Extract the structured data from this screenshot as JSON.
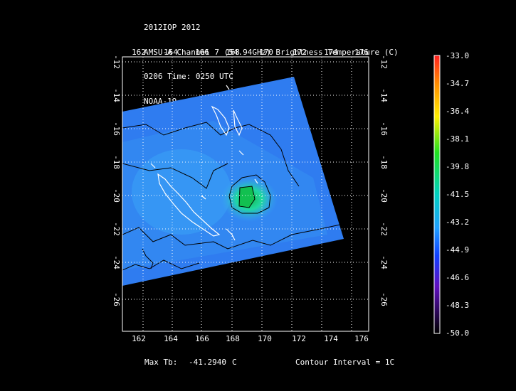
{
  "header": {
    "line1": "2012IOP 2012",
    "line2": "AMSU-A Channel 7 (54.94GHz) Brightness Temperature (C)",
    "line3": "0206 Time: 0250 UTC",
    "line4": "NOAA-19"
  },
  "axes": {
    "longitude_ticks": [
      "162",
      "164",
      "166",
      "168",
      "170",
      "172",
      "174",
      "176"
    ],
    "latitude_ticks": [
      "-12",
      "-14",
      "-16",
      "-18",
      "-20",
      "-22",
      "-24",
      "-26"
    ]
  },
  "colorbar": {
    "labels": [
      "-33.0",
      "-34.7",
      "-36.4",
      "-38.1",
      "-39.8",
      "-41.5",
      "-43.2",
      "-44.9",
      "-46.6",
      "-48.3",
      "-50.0"
    ]
  },
  "footer": {
    "max_label": "Max Tb:",
    "max_value": "-41.2940",
    "max_unit": "C",
    "contour_text": "Contour Interval = 1C"
  },
  "colors": {
    "swath": "#2f7cf0",
    "swath_light": "#3a9af5",
    "warm_core": "#19d05a",
    "coast": "#ffffff",
    "contour": "#000000"
  }
}
